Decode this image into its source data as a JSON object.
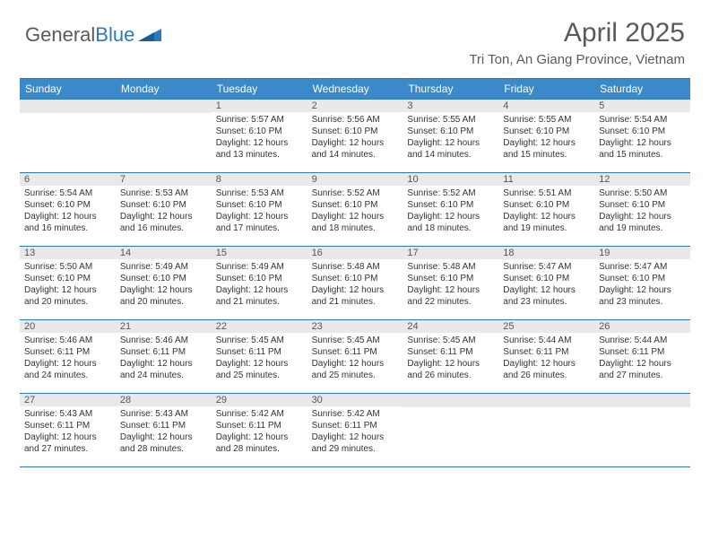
{
  "brand": {
    "part1": "General",
    "part2": "Blue"
  },
  "title": "April 2025",
  "location": "Tri Ton, An Giang Province, Vietnam",
  "colors": {
    "accent": "#3b89c9",
    "accent_line": "#2a7ac0",
    "gray_bg": "#e9e9e9",
    "text": "#333333",
    "head_text": "#5a5a5a"
  },
  "day_headers": [
    "Sunday",
    "Monday",
    "Tuesday",
    "Wednesday",
    "Thursday",
    "Friday",
    "Saturday"
  ],
  "weeks": [
    [
      {
        "day": "",
        "sunrise": "",
        "sunset": "",
        "daylight": ""
      },
      {
        "day": "",
        "sunrise": "",
        "sunset": "",
        "daylight": ""
      },
      {
        "day": "1",
        "sunrise": "Sunrise: 5:57 AM",
        "sunset": "Sunset: 6:10 PM",
        "daylight": "Daylight: 12 hours and 13 minutes."
      },
      {
        "day": "2",
        "sunrise": "Sunrise: 5:56 AM",
        "sunset": "Sunset: 6:10 PM",
        "daylight": "Daylight: 12 hours and 14 minutes."
      },
      {
        "day": "3",
        "sunrise": "Sunrise: 5:55 AM",
        "sunset": "Sunset: 6:10 PM",
        "daylight": "Daylight: 12 hours and 14 minutes."
      },
      {
        "day": "4",
        "sunrise": "Sunrise: 5:55 AM",
        "sunset": "Sunset: 6:10 PM",
        "daylight": "Daylight: 12 hours and 15 minutes."
      },
      {
        "day": "5",
        "sunrise": "Sunrise: 5:54 AM",
        "sunset": "Sunset: 6:10 PM",
        "daylight": "Daylight: 12 hours and 15 minutes."
      }
    ],
    [
      {
        "day": "6",
        "sunrise": "Sunrise: 5:54 AM",
        "sunset": "Sunset: 6:10 PM",
        "daylight": "Daylight: 12 hours and 16 minutes."
      },
      {
        "day": "7",
        "sunrise": "Sunrise: 5:53 AM",
        "sunset": "Sunset: 6:10 PM",
        "daylight": "Daylight: 12 hours and 16 minutes."
      },
      {
        "day": "8",
        "sunrise": "Sunrise: 5:53 AM",
        "sunset": "Sunset: 6:10 PM",
        "daylight": "Daylight: 12 hours and 17 minutes."
      },
      {
        "day": "9",
        "sunrise": "Sunrise: 5:52 AM",
        "sunset": "Sunset: 6:10 PM",
        "daylight": "Daylight: 12 hours and 18 minutes."
      },
      {
        "day": "10",
        "sunrise": "Sunrise: 5:52 AM",
        "sunset": "Sunset: 6:10 PM",
        "daylight": "Daylight: 12 hours and 18 minutes."
      },
      {
        "day": "11",
        "sunrise": "Sunrise: 5:51 AM",
        "sunset": "Sunset: 6:10 PM",
        "daylight": "Daylight: 12 hours and 19 minutes."
      },
      {
        "day": "12",
        "sunrise": "Sunrise: 5:50 AM",
        "sunset": "Sunset: 6:10 PM",
        "daylight": "Daylight: 12 hours and 19 minutes."
      }
    ],
    [
      {
        "day": "13",
        "sunrise": "Sunrise: 5:50 AM",
        "sunset": "Sunset: 6:10 PM",
        "daylight": "Daylight: 12 hours and 20 minutes."
      },
      {
        "day": "14",
        "sunrise": "Sunrise: 5:49 AM",
        "sunset": "Sunset: 6:10 PM",
        "daylight": "Daylight: 12 hours and 20 minutes."
      },
      {
        "day": "15",
        "sunrise": "Sunrise: 5:49 AM",
        "sunset": "Sunset: 6:10 PM",
        "daylight": "Daylight: 12 hours and 21 minutes."
      },
      {
        "day": "16",
        "sunrise": "Sunrise: 5:48 AM",
        "sunset": "Sunset: 6:10 PM",
        "daylight": "Daylight: 12 hours and 21 minutes."
      },
      {
        "day": "17",
        "sunrise": "Sunrise: 5:48 AM",
        "sunset": "Sunset: 6:10 PM",
        "daylight": "Daylight: 12 hours and 22 minutes."
      },
      {
        "day": "18",
        "sunrise": "Sunrise: 5:47 AM",
        "sunset": "Sunset: 6:10 PM",
        "daylight": "Daylight: 12 hours and 23 minutes."
      },
      {
        "day": "19",
        "sunrise": "Sunrise: 5:47 AM",
        "sunset": "Sunset: 6:10 PM",
        "daylight": "Daylight: 12 hours and 23 minutes."
      }
    ],
    [
      {
        "day": "20",
        "sunrise": "Sunrise: 5:46 AM",
        "sunset": "Sunset: 6:11 PM",
        "daylight": "Daylight: 12 hours and 24 minutes."
      },
      {
        "day": "21",
        "sunrise": "Sunrise: 5:46 AM",
        "sunset": "Sunset: 6:11 PM",
        "daylight": "Daylight: 12 hours and 24 minutes."
      },
      {
        "day": "22",
        "sunrise": "Sunrise: 5:45 AM",
        "sunset": "Sunset: 6:11 PM",
        "daylight": "Daylight: 12 hours and 25 minutes."
      },
      {
        "day": "23",
        "sunrise": "Sunrise: 5:45 AM",
        "sunset": "Sunset: 6:11 PM",
        "daylight": "Daylight: 12 hours and 25 minutes."
      },
      {
        "day": "24",
        "sunrise": "Sunrise: 5:45 AM",
        "sunset": "Sunset: 6:11 PM",
        "daylight": "Daylight: 12 hours and 26 minutes."
      },
      {
        "day": "25",
        "sunrise": "Sunrise: 5:44 AM",
        "sunset": "Sunset: 6:11 PM",
        "daylight": "Daylight: 12 hours and 26 minutes."
      },
      {
        "day": "26",
        "sunrise": "Sunrise: 5:44 AM",
        "sunset": "Sunset: 6:11 PM",
        "daylight": "Daylight: 12 hours and 27 minutes."
      }
    ],
    [
      {
        "day": "27",
        "sunrise": "Sunrise: 5:43 AM",
        "sunset": "Sunset: 6:11 PM",
        "daylight": "Daylight: 12 hours and 27 minutes."
      },
      {
        "day": "28",
        "sunrise": "Sunrise: 5:43 AM",
        "sunset": "Sunset: 6:11 PM",
        "daylight": "Daylight: 12 hours and 28 minutes."
      },
      {
        "day": "29",
        "sunrise": "Sunrise: 5:42 AM",
        "sunset": "Sunset: 6:11 PM",
        "daylight": "Daylight: 12 hours and 28 minutes."
      },
      {
        "day": "30",
        "sunrise": "Sunrise: 5:42 AM",
        "sunset": "Sunset: 6:11 PM",
        "daylight": "Daylight: 12 hours and 29 minutes."
      },
      {
        "day": "",
        "sunrise": "",
        "sunset": "",
        "daylight": ""
      },
      {
        "day": "",
        "sunrise": "",
        "sunset": "",
        "daylight": ""
      },
      {
        "day": "",
        "sunrise": "",
        "sunset": "",
        "daylight": ""
      }
    ]
  ]
}
